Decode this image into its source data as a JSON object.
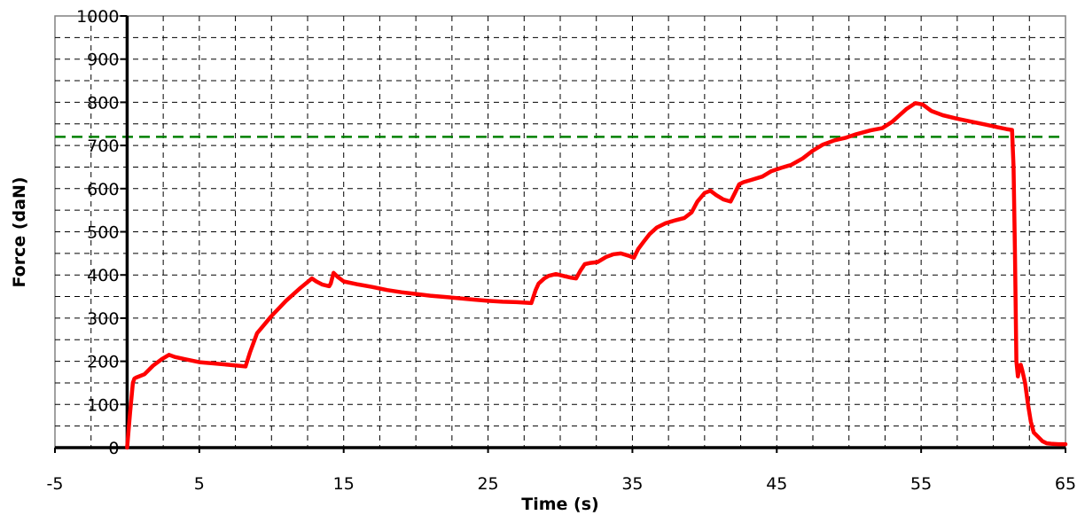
{
  "chart_data": {
    "type": "line",
    "xlabel": "Time (s)",
    "ylabel": "Force (daN)",
    "xlim": [
      -5,
      65
    ],
    "ylim": [
      0,
      1000
    ],
    "x_ticks": [
      -5,
      5,
      15,
      25,
      35,
      45,
      55,
      65
    ],
    "y_ticks": [
      0,
      100,
      200,
      300,
      400,
      500,
      600,
      700,
      800,
      900,
      1000
    ],
    "x_minor_grid_step": 2.5,
    "y_grid_step": 50,
    "grid": true,
    "reference_line": {
      "y": 720,
      "color": "#008000",
      "style": "dashed"
    },
    "series": [
      {
        "color": "#ff0000",
        "x": [
          0,
          0.2,
          0.4,
          0.5,
          0.6,
          1.2,
          1.8,
          2.4,
          2.9,
          3.3,
          4,
          5,
          6,
          7,
          8.2,
          8.5,
          9,
          10,
          11,
          12,
          12.8,
          13.1,
          13.5,
          14,
          14.1,
          14.3,
          14.6,
          15,
          16,
          17,
          18,
          19,
          20,
          21,
          22,
          23,
          24,
          25,
          26,
          27,
          28,
          28.3,
          28.5,
          28.9,
          29.2,
          29.7,
          30.2,
          30.7,
          31.1,
          31.4,
          31.7,
          32.1,
          32.6,
          33.2,
          33.7,
          34.2,
          34.7,
          35.1,
          35.4,
          35.8,
          36.2,
          36.7,
          37.3,
          38,
          38.6,
          39.1,
          39.5,
          40,
          40.4,
          40.8,
          41.3,
          41.8,
          42.1,
          42.4,
          42.7,
          43.2,
          44,
          44.6,
          45.3,
          46,
          46.8,
          47.5,
          48.2,
          49,
          49.8,
          50.5,
          51.5,
          52.3,
          53,
          53.5,
          54,
          54.6,
          55.1,
          55.7,
          56.5,
          57.5,
          58.5,
          59.5,
          60.3,
          60.9,
          61.3,
          61.4,
          61.5,
          61.6,
          61.7,
          61.75,
          61.8,
          61.9,
          62,
          62.2,
          62.4,
          62.6,
          62.8,
          63.1,
          63.4,
          63.7,
          64,
          64.5,
          65
        ],
        "y": [
          0,
          80,
          150,
          160,
          162,
          170,
          190,
          205,
          215,
          210,
          205,
          198,
          195,
          192,
          188,
          220,
          265,
          305,
          340,
          370,
          392,
          385,
          378,
          374,
          380,
          405,
          395,
          385,
          378,
          372,
          365,
          360,
          356,
          352,
          349,
          346,
          343,
          340,
          338,
          337,
          335,
          365,
          380,
          392,
          398,
          402,
          398,
          394,
          392,
          410,
          425,
          428,
          430,
          442,
          448,
          450,
          445,
          440,
          460,
          478,
          495,
          510,
          520,
          527,
          532,
          545,
          570,
          590,
          595,
          585,
          575,
          570,
          590,
          610,
          615,
          620,
          628,
          640,
          648,
          655,
          670,
          688,
          702,
          712,
          718,
          726,
          735,
          740,
          755,
          770,
          785,
          798,
          795,
          780,
          770,
          762,
          755,
          748,
          742,
          738,
          736,
          650,
          450,
          200,
          165,
          175,
          190,
          192,
          180,
          150,
          100,
          60,
          35,
          25,
          15,
          10,
          9,
          8,
          8
        ]
      }
    ]
  }
}
